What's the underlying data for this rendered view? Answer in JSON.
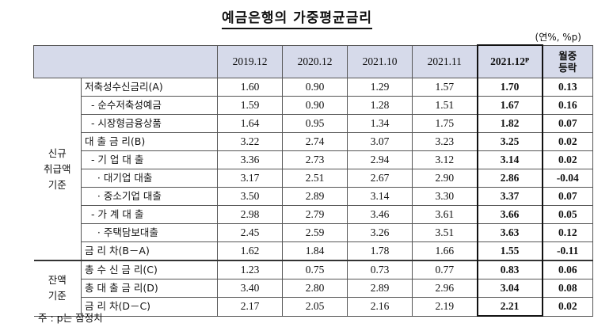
{
  "title": "예금은행의 가중평균금리",
  "unit": "(연%, %p)",
  "columns": [
    "2019.12",
    "2020.12",
    "2021.10",
    "2021.11",
    "2021.12ᴾ",
    "월중\n등락"
  ],
  "groups": [
    {
      "label": "신규\n취급액\n기준",
      "rows": [
        {
          "label": "저축성수신금리(A)",
          "values": [
            "1.60",
            "0.90",
            "1.29",
            "1.57",
            "1.70",
            "0.13"
          ]
        },
        {
          "label": "  - 순수저축성예금",
          "values": [
            "1.59",
            "0.90",
            "1.28",
            "1.51",
            "1.67",
            "0.16"
          ]
        },
        {
          "label": "  - 시장형금융상품",
          "values": [
            "1.64",
            "0.95",
            "1.34",
            "1.75",
            "1.82",
            "0.07"
          ]
        },
        {
          "label": "대 출 금 리(B)",
          "values": [
            "3.22",
            "2.74",
            "3.07",
            "3.23",
            "3.25",
            "0.02"
          ]
        },
        {
          "label": "  - 기 업 대 출",
          "values": [
            "3.36",
            "2.73",
            "2.94",
            "3.12",
            "3.14",
            "0.02"
          ]
        },
        {
          "label": "    · 대기업 대출",
          "values": [
            "3.17",
            "2.51",
            "2.67",
            "2.90",
            "2.86",
            "-0.04"
          ]
        },
        {
          "label": "    · 중소기업 대출",
          "values": [
            "3.50",
            "2.89",
            "3.14",
            "3.30",
            "3.37",
            "0.07"
          ]
        },
        {
          "label": "  - 가 계 대 출",
          "values": [
            "2.98",
            "2.79",
            "3.46",
            "3.61",
            "3.66",
            "0.05"
          ]
        },
        {
          "label": "    · 주택담보대출",
          "values": [
            "2.45",
            "2.59",
            "3.26",
            "3.51",
            "3.63",
            "0.12"
          ]
        },
        {
          "label": "금 리 차(B－A)",
          "values": [
            "1.62",
            "1.84",
            "1.78",
            "1.66",
            "1.55",
            "-0.11"
          ]
        }
      ]
    },
    {
      "label": "잔액\n기준",
      "rows": [
        {
          "label": "총 수 신 금 리(C)",
          "values": [
            "1.23",
            "0.75",
            "0.73",
            "0.77",
            "0.83",
            "0.06"
          ]
        },
        {
          "label": "총 대 출 금 리(D)",
          "values": [
            "3.40",
            "2.80",
            "2.89",
            "2.96",
            "3.04",
            "0.08"
          ]
        },
        {
          "label": "금 리 차(D－C)",
          "values": [
            "2.17",
            "2.05",
            "2.16",
            "2.19",
            "2.21",
            "0.02"
          ]
        }
      ]
    }
  ],
  "note": "주 : p는 잠정치"
}
